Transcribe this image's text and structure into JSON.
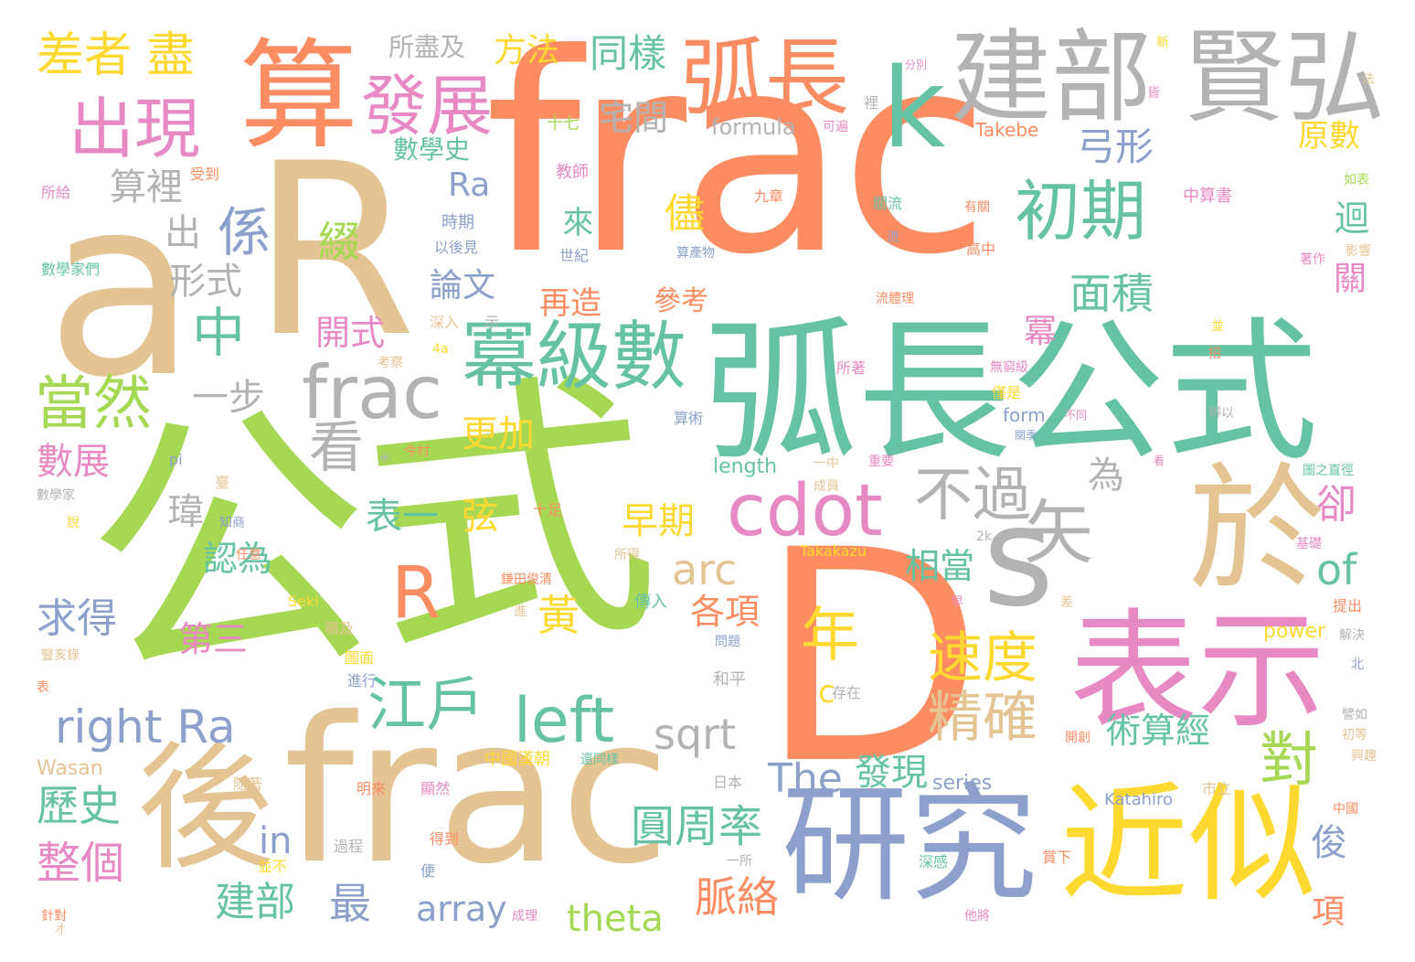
{
  "words": [
    "公式",
    "frac",
    "a",
    "D",
    "R",
    "弧長公式",
    "研究",
    "frac",
    "後",
    "近似",
    "表示",
    "於",
    "s",
    "算",
    "建部",
    "賢弘",
    "k",
    "弧長",
    "冪級數",
    "frac",
    "cdot",
    "發展",
    "初期",
    "出現",
    "差者 盡",
    "係",
    "中",
    "當然",
    "不過",
    "矢",
    "年",
    "R",
    "速度",
    "精確",
    "江戶",
    "left",
    "right Ra",
    "sqrt",
    "The",
    "發現",
    "圓周率",
    "對",
    "脈絡",
    "整個",
    "歷史",
    "建部",
    "求得",
    "數展",
    "看",
    "一步",
    "表一",
    "弦",
    "早期",
    "arc",
    "of",
    "黃",
    "第三",
    "相當",
    "各項",
    "in",
    "array",
    "theta",
    "最",
    "形式",
    "出",
    "算裡",
    "綴",
    "儘",
    "面積",
    "弓形",
    "宅間",
    "同樣",
    "方法",
    "所盡及",
    "數學史",
    "Ra",
    "來",
    "論文",
    "再造",
    "開式",
    "更加",
    "冪",
    "關",
    "迴",
    "卻",
    "為",
    "瑋",
    "認為",
    "術算經",
    "俊",
    "項",
    "原數",
    "formula",
    "Takebe",
    "參考",
    "c",
    "length",
    "form",
    "power",
    "series",
    "Wasan",
    "Katahiro",
    "Takakazu",
    "Seki",
    "4a",
    "2k",
    "pi",
    "中算書",
    "九章",
    "教師",
    "時期",
    "世紀",
    "算術",
    "傳入",
    "十七",
    "所給",
    "數學家們",
    "受到",
    "以後見",
    "算產物",
    "關流",
    "流",
    "流體理",
    "深入",
    "示",
    "考察",
    "所著",
    "無窮級",
    "僅是",
    "不同",
    "得以",
    "圖之直徑",
    "基礎",
    "提出",
    "解決",
    "北",
    "興趣",
    "中國",
    "市立",
    "日本",
    "中國漢朝",
    "還同樣",
    "鎌田俊清",
    "圖面",
    "進行",
    "隨著",
    "明來",
    "顯然",
    "得到",
    "過程",
    "並不",
    "便",
    "一所",
    "賞下",
    "深感",
    "他將",
    "成理",
    "針對",
    "才",
    "和平",
    "十足",
    "任意",
    "知商",
    "數學家",
    "臺",
    "今村",
    "半",
    "積及",
    "問題",
    "豎亥錄",
    "表",
    "說",
    "所得",
    "早",
    "差",
    "存在",
    "開創",
    "譬如",
    "初等",
    "著作",
    "影響",
    "有關",
    "高中",
    "可遍",
    "裡",
    "皆",
    "新",
    "法",
    "分別",
    "如表",
    "並",
    "招",
    "關季",
    "重要",
    "成員",
    "一中",
    "看",
    "進"
  ],
  "palette": {
    "green": "#a6d854",
    "orange": "#fc8d62",
    "tan": "#e5c494",
    "teal": "#66c2a5",
    "blue": "#8da0cb",
    "pink": "#e78ac3",
    "yellow": "#ffd92f",
    "gray": "#b3b3b3"
  }
}
